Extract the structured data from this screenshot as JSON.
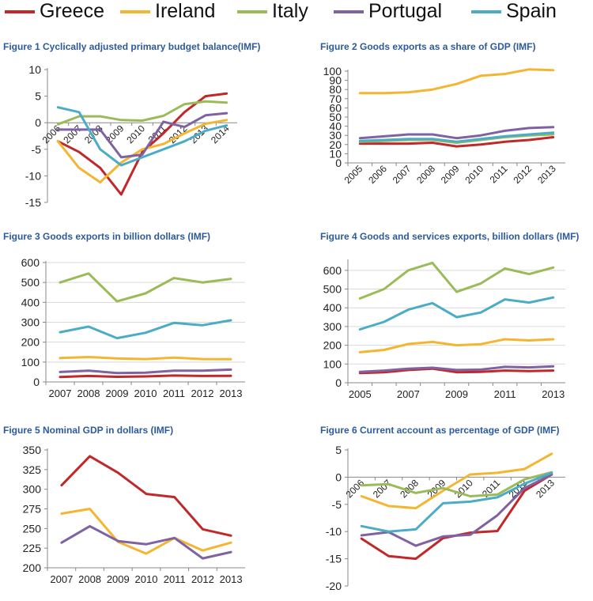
{
  "legend": [
    {
      "name": "Greece",
      "color": "#c0282a"
    },
    {
      "name": "Ireland",
      "color": "#f4b532"
    },
    {
      "name": "Italy",
      "color": "#9bbb59"
    },
    {
      "name": "Portugal",
      "color": "#7f62a1"
    },
    {
      "name": "Spain",
      "color": "#4bacc6"
    }
  ],
  "chart_data": [
    {
      "type": "line",
      "title": "Figure 1 Cyclically adjusted primary budget balance(IMF)",
      "categories": [
        "2006",
        "2007",
        "2008",
        "2009",
        "2010",
        "2011",
        "2012",
        "2013",
        "2014"
      ],
      "ylim": [
        -15,
        10
      ],
      "yticks": [
        -15,
        -10,
        -5,
        0,
        5,
        10
      ],
      "grid": false,
      "series": [
        {
          "name": "Greece",
          "color": "#c0282a",
          "values": [
            -3.5,
            -5.5,
            -8.5,
            -13.5,
            -5.5,
            -2.0,
            2.0,
            5.0,
            5.5
          ]
        },
        {
          "name": "Ireland",
          "color": "#f4b532",
          "values": [
            -3.5,
            -8.5,
            -11.2,
            -7.5,
            -5.0,
            -4.0,
            -2.0,
            -0.2,
            0.5
          ]
        },
        {
          "name": "Italy",
          "color": "#9bbb59",
          "values": [
            -0.3,
            1.2,
            1.2,
            0.5,
            0.4,
            1.3,
            3.5,
            4.0,
            3.8
          ]
        },
        {
          "name": "Portugal",
          "color": "#7f62a1",
          "values": [
            -1.3,
            -1.3,
            -1.3,
            -6.5,
            -6.0,
            0.2,
            -0.8,
            1.4,
            1.8
          ]
        },
        {
          "name": "Spain",
          "color": "#4bacc6",
          "values": [
            2.9,
            2.0,
            -5.0,
            -8.0,
            -6.5,
            -5.0,
            -3.5,
            -1.5,
            -0.5
          ]
        }
      ]
    },
    {
      "type": "line",
      "title": "Figure 2 Goods exports as a share of GDP (IMF)",
      "categories": [
        "2005",
        "2006",
        "2007",
        "2008",
        "2009",
        "2010",
        "2011",
        "2012",
        "2013"
      ],
      "ylim": [
        0,
        100
      ],
      "yticks": [
        0,
        10,
        20,
        30,
        40,
        50,
        60,
        70,
        80,
        90,
        100
      ],
      "grid": false,
      "series": [
        {
          "name": "Greece",
          "color": "#c0282a",
          "values": [
            21,
            21,
            21,
            22,
            18,
            20,
            23,
            25,
            28
          ]
        },
        {
          "name": "Ireland",
          "color": "#f4b532",
          "values": [
            76,
            76,
            77,
            80,
            86,
            95,
            97,
            102,
            101
          ]
        },
        {
          "name": "Italy",
          "color": "#9bbb59",
          "values": [
            23,
            24,
            25,
            25,
            22,
            25,
            28,
            30,
            31
          ]
        },
        {
          "name": "Portugal",
          "color": "#7f62a1",
          "values": [
            27,
            29,
            31,
            31,
            27,
            30,
            35,
            38,
            39
          ]
        },
        {
          "name": "Spain",
          "color": "#4bacc6",
          "values": [
            24,
            25,
            26,
            26,
            23,
            26,
            29,
            31,
            33
          ]
        }
      ]
    },
    {
      "type": "line",
      "title": "Figure 3 Goods exports in billion dollars (IMF)",
      "categories": [
        "2007",
        "2008",
        "2009",
        "2010",
        "2011",
        "2012",
        "2013"
      ],
      "ylim": [
        0,
        600
      ],
      "yticks": [
        0,
        100,
        200,
        300,
        400,
        500,
        600
      ],
      "grid": true,
      "series": [
        {
          "name": "Greece",
          "color": "#c0282a",
          "values": [
            25,
            30,
            26,
            28,
            32,
            30,
            31
          ]
        },
        {
          "name": "Ireland",
          "color": "#f4b532",
          "values": [
            120,
            125,
            118,
            115,
            122,
            115,
            114
          ]
        },
        {
          "name": "Italy",
          "color": "#9bbb59",
          "values": [
            500,
            545,
            405,
            445,
            522,
            500,
            518
          ]
        },
        {
          "name": "Portugal",
          "color": "#7f62a1",
          "values": [
            50,
            57,
            45,
            47,
            57,
            57,
            62
          ]
        },
        {
          "name": "Spain",
          "color": "#4bacc6",
          "values": [
            250,
            278,
            220,
            247,
            297,
            285,
            310
          ]
        }
      ]
    },
    {
      "type": "line",
      "title": "Figure 4 Goods and services exports, billion dollars (IMF)",
      "categories": [
        "2005",
        "2006",
        "2007",
        "2008",
        "2009",
        "2010",
        "2011",
        "2012",
        "2013"
      ],
      "tick_labels": [
        "2005",
        "",
        "2007",
        "",
        "2009",
        "",
        "2011",
        "",
        "2013"
      ],
      "ylim": [
        0,
        650
      ],
      "yticks": [
        0,
        100,
        200,
        300,
        400,
        500,
        600
      ],
      "grid": true,
      "series": [
        {
          "name": "Greece",
          "color": "#c0282a",
          "values": [
            52,
            56,
            68,
            75,
            56,
            58,
            65,
            62,
            65
          ]
        },
        {
          "name": "Ireland",
          "color": "#f4b532",
          "values": [
            163,
            175,
            207,
            218,
            200,
            206,
            232,
            226,
            232
          ]
        },
        {
          "name": "Italy",
          "color": "#9bbb59",
          "values": [
            450,
            500,
            600,
            640,
            485,
            530,
            610,
            580,
            615
          ]
        },
        {
          "name": "Portugal",
          "color": "#7f62a1",
          "values": [
            58,
            65,
            75,
            80,
            68,
            70,
            85,
            82,
            88
          ]
        },
        {
          "name": "Spain",
          "color": "#4bacc6",
          "values": [
            285,
            325,
            390,
            425,
            350,
            375,
            445,
            428,
            455
          ]
        }
      ]
    },
    {
      "type": "line",
      "title": "Figure 5 Nominal GDP in dollars (IMF)",
      "categories": [
        "2007",
        "2008",
        "2009",
        "2010",
        "2011",
        "2012",
        "2013"
      ],
      "ylim": [
        200,
        350
      ],
      "yticks": [
        200,
        225,
        250,
        275,
        300,
        325,
        350
      ],
      "grid": false,
      "series": [
        {
          "name": "Greece",
          "color": "#c0282a",
          "values": [
            305,
            342,
            321,
            294,
            290,
            249,
            241
          ]
        },
        {
          "name": "Ireland",
          "color": "#f4b532",
          "values": [
            269,
            275,
            233,
            218,
            238,
            222,
            232
          ]
        },
        {
          "name": "Portugal",
          "color": "#7f62a1",
          "values": [
            232,
            253,
            234,
            230,
            238,
            212,
            220
          ]
        }
      ]
    },
    {
      "type": "line",
      "title": "Figure 6 Current account as percentage of GDP (IMF)",
      "categories": [
        "2006",
        "2007",
        "2008",
        "2009",
        "2010",
        "2011",
        "2012",
        "2013"
      ],
      "ylim": [
        -20,
        5
      ],
      "yticks": [
        -20,
        -15,
        -10,
        -5,
        0,
        5
      ],
      "grid": false,
      "series": [
        {
          "name": "Greece",
          "color": "#c0282a",
          "values": [
            -11.3,
            -14.5,
            -15.0,
            -11.2,
            -10.2,
            -9.9,
            -2.5,
            0.5
          ]
        },
        {
          "name": "Ireland",
          "color": "#f4b532",
          "values": [
            -3.5,
            -5.3,
            -5.7,
            -2.5,
            0.5,
            0.8,
            1.5,
            4.3
          ]
        },
        {
          "name": "Italy",
          "color": "#9bbb59",
          "values": [
            -1.5,
            -1.3,
            -2.9,
            -2.0,
            -3.5,
            -3.2,
            -0.4,
            0.9
          ]
        },
        {
          "name": "Portugal",
          "color": "#7f62a1",
          "values": [
            -10.7,
            -10.1,
            -12.6,
            -10.9,
            -10.6,
            -7.0,
            -2.0,
            0.5
          ]
        },
        {
          "name": "Spain",
          "color": "#4bacc6",
          "values": [
            -9.0,
            -10.0,
            -9.6,
            -4.8,
            -4.5,
            -3.7,
            -1.2,
            0.8
          ]
        }
      ]
    }
  ]
}
